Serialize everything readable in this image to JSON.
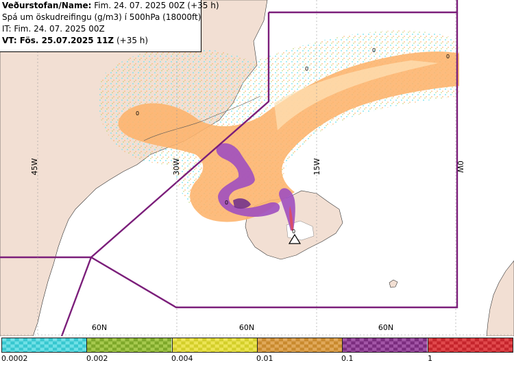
{
  "header": {
    "run_label": "Veðurstofan/Name:",
    "run_value": "Fim. 24. 07. 2025 00Z (+35 h)",
    "description": "Spá um öskudreifingu (g/m3) í 500hPa (18000ft)",
    "it_label": "IT: Fim. 24. 07. 2025 00Z",
    "vt_label": "VT: Fös. 25.07.2025 11Z",
    "vt_suffix": "(+35 h)"
  },
  "map": {
    "longitude_labels": [
      "45W",
      "30W",
      "15W",
      "0W"
    ],
    "latitude_labels": [
      "60N",
      "60N",
      "60N"
    ],
    "contour_labels": [
      "0",
      "0",
      "0",
      "0",
      "0",
      "0"
    ],
    "colors": {
      "land": "#f2dfd3",
      "sea": "#ffffff",
      "boundary": "#7b1e7a",
      "ash_orange": "#fdb36b",
      "ash_light": "#fde2b8",
      "ash_purple": "#a04fbf",
      "ash_dark": "#6b2a8c",
      "speckle_cyan": "#7fe5f0",
      "speckle_green": "#a7c948"
    },
    "volcano_icon": "volcano-triangle-icon"
  },
  "legend": {
    "swatches": [
      {
        "color": "#38c8d0",
        "alt": "#6fe0e6"
      },
      {
        "color": "#7ea82a",
        "alt": "#a6c94e"
      },
      {
        "color": "#d4cf2a",
        "alt": "#ece455"
      },
      {
        "color": "#c98a2e",
        "alt": "#e0a85a"
      },
      {
        "color": "#7b2d7f",
        "alt": "#a255a6"
      },
      {
        "color": "#c5252c",
        "alt": "#e0484c"
      }
    ],
    "tick_labels": [
      "0.0002",
      "0.002",
      "0.004",
      "0.01",
      "0.1",
      "1"
    ]
  }
}
